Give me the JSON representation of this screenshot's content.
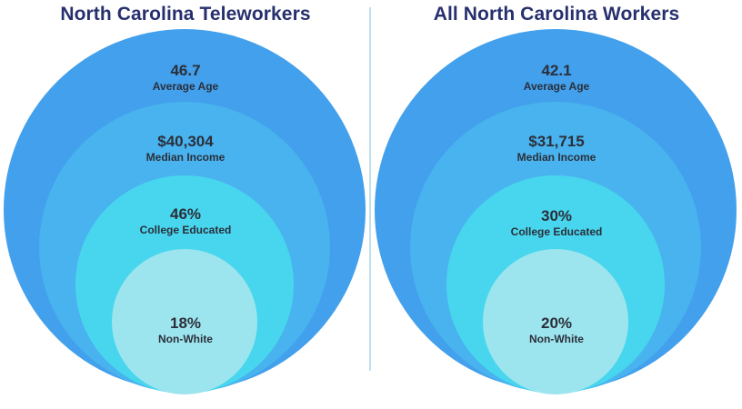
{
  "panels": [
    {
      "title": "North Carolina Teleworkers",
      "rings": [
        {
          "value": "46.7",
          "label": "Average Age"
        },
        {
          "value": "$40,304",
          "label": "Median Income"
        },
        {
          "value": "46%",
          "label": "College Educated"
        },
        {
          "value": "18%",
          "label": "Non-White"
        }
      ]
    },
    {
      "title": "All North Carolina Workers",
      "rings": [
        {
          "value": "42.1",
          "label": "Average Age"
        },
        {
          "value": "$31,715",
          "label": "Median Income"
        },
        {
          "value": "30%",
          "label": "College Educated"
        },
        {
          "value": "20%",
          "label": "Non-White"
        }
      ]
    }
  ],
  "colors": {
    "title": "#27306f",
    "ring_1": "#42a0ec",
    "ring_2": "#48b3ee",
    "ring_3": "#48d6ee",
    "ring_4": "#9de5ee",
    "divider": "#bfe1ee"
  }
}
